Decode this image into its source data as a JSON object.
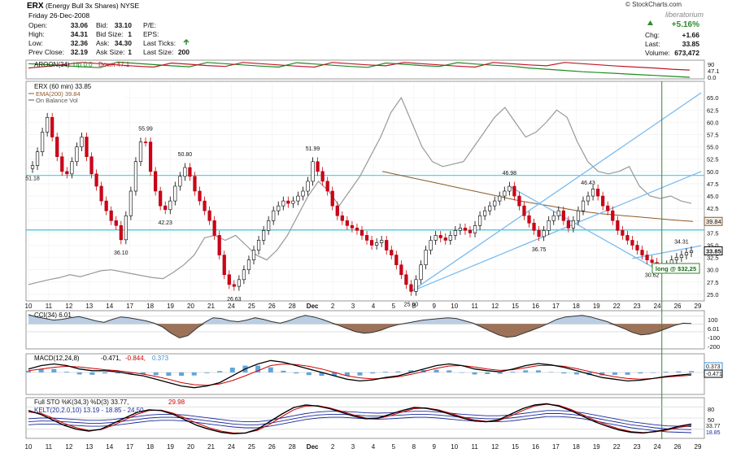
{
  "header": {
    "ticker": "ERX",
    "name": "(Energy Bull 3x Shares)",
    "exchange": "NYSE",
    "date": "Friday  26-Dec-2008",
    "watermark": "© StockCharts.com",
    "brand": "liberatorium",
    "left_stats": [
      {
        "label": "Open:",
        "value": "33.06"
      },
      {
        "label": "High:",
        "value": "34.31"
      },
      {
        "label": "Low:",
        "value": "32.36"
      },
      {
        "label": "Prev Close:",
        "value": "32.19"
      }
    ],
    "mid_stats": [
      {
        "label": "Bid:",
        "value": "33.10"
      },
      {
        "label": "Bid Size:",
        "value": "1"
      },
      {
        "label": "Ask:",
        "value": "34.30"
      },
      {
        "label": "Ask Size:",
        "value": "1"
      }
    ],
    "right_stats": [
      {
        "label": "P/E:",
        "value": ""
      },
      {
        "label": "EPS:",
        "value": ""
      },
      {
        "label": "Last Ticks:",
        "value": ""
      },
      {
        "label": "Last Size:",
        "value": "200"
      }
    ],
    "change_pct": "+5.16%",
    "quote": [
      {
        "label": "Chg:",
        "value": "+1.66"
      },
      {
        "label": "Last:",
        "value": "33.85"
      },
      {
        "label": "Volume:",
        "value": "673,472"
      }
    ],
    "colors": {
      "up": "#2e8b2e",
      "down": "#cc0000"
    }
  },
  "chart_data": [
    {
      "type": "line",
      "panel": "aroon",
      "title": "AROON(34) Up 0.0  Down 47.1",
      "legend": [
        "AROON(34)",
        "Up 0.0",
        "Down 47.1"
      ],
      "ylim": [
        0,
        100
      ],
      "yticks": [
        "90",
        "47.1",
        "0.0"
      ],
      "series": [
        {
          "name": "Up",
          "color": "#1f8a1f",
          "values": [
            88,
            82,
            75,
            68,
            62,
            98,
            90,
            82,
            74,
            68,
            96,
            88,
            80,
            72,
            66,
            94,
            86,
            78,
            70,
            64,
            92,
            84,
            76,
            70,
            95,
            86,
            78,
            72,
            60,
            52,
            44,
            36,
            30,
            24,
            18,
            12,
            6,
            0
          ]
        },
        {
          "name": "Down",
          "color": "#c0182a",
          "values": [
            60,
            70,
            82,
            96,
            88,
            80,
            72,
            66,
            92,
            84,
            76,
            70,
            96,
            88,
            80,
            72,
            66,
            96,
            88,
            80,
            74,
            96,
            88,
            80,
            72,
            66,
            96,
            88,
            80,
            74,
            96,
            88,
            80,
            72,
            66,
            60,
            52,
            47
          ]
        }
      ]
    },
    {
      "type": "candlestick",
      "panel": "price",
      "title": "ERX (60 min) 33.85",
      "legend": [
        {
          "name": "EMA(200) 39.84",
          "color": "#8b5a2b"
        },
        {
          "name": "On Balance Vol",
          "color": "#555555"
        }
      ],
      "ylim": [
        24,
        68
      ],
      "yticks": [
        25,
        27.5,
        30,
        32.5,
        35,
        37.5,
        40,
        42.5,
        45,
        47.5,
        50,
        52.5,
        55,
        57.5,
        60,
        62.5,
        65
      ],
      "x_labels": [
        "10",
        "11",
        "12",
        "13",
        "14",
        "17",
        "18",
        "19",
        "20",
        "21",
        "24",
        "25",
        "26",
        "28",
        "Dec",
        "2",
        "3",
        "4",
        "5",
        "8",
        "9",
        "10",
        "11",
        "12",
        "15",
        "16",
        "17",
        "18",
        "19",
        "22",
        "23",
        "24",
        "26",
        "29"
      ],
      "closes": [
        51.2,
        54,
        58,
        61,
        57,
        53,
        50,
        49.5,
        52,
        55,
        57,
        53,
        49.5,
        47,
        44,
        42,
        40,
        39,
        36.1,
        41,
        46,
        52,
        56,
        55.99,
        50,
        46,
        43,
        42.23,
        44,
        47,
        49,
        50.8,
        49,
        46,
        44,
        42,
        40,
        37,
        33,
        29,
        27,
        26.63,
        28,
        30,
        32,
        34,
        36,
        38,
        40,
        42,
        43,
        44,
        43.5,
        44,
        45,
        46,
        48,
        51.99,
        50,
        48,
        46,
        43,
        41,
        40,
        39,
        38.5,
        38,
        37,
        36,
        35,
        35.5,
        36,
        34,
        33,
        31,
        29,
        27,
        25.6,
        28,
        31,
        34,
        36,
        37,
        36.5,
        36,
        37,
        38,
        38.5,
        38,
        37.5,
        39,
        41,
        42,
        43,
        44,
        45,
        46,
        46.98,
        45,
        43,
        41,
        39.5,
        38,
        36.75,
        38,
        40,
        41,
        42,
        40,
        38.5,
        40,
        42,
        44,
        45,
        46.43,
        45,
        43,
        42,
        40,
        38,
        37,
        36,
        35,
        34,
        33,
        32,
        31.5,
        31,
        30.62,
        31,
        32,
        32.5,
        33,
        33.5,
        33.85
      ],
      "labels": [
        {
          "text": "51.18",
          "idx": 0
        },
        {
          "text": "36.10",
          "idx": 18
        },
        {
          "text": "55.99",
          "idx": 23
        },
        {
          "text": "42.23",
          "idx": 27
        },
        {
          "text": "50.80",
          "idx": 31
        },
        {
          "text": "26.63",
          "idx": 41
        },
        {
          "text": "51.99",
          "idx": 57
        },
        {
          "text": "25.60",
          "idx": 77
        },
        {
          "text": "46.98",
          "idx": 97
        },
        {
          "text": "36.75",
          "idx": 103
        },
        {
          "text": "46.43",
          "idx": 113
        },
        {
          "text": "30.62",
          "idx": 126
        },
        {
          "text": "34.31",
          "idx": 132
        }
      ],
      "last_value": "33.85",
      "ema_value": "39.84",
      "ema": [
        50,
        49.5,
        49,
        48.5,
        48,
        47.5,
        47,
        46.5,
        46,
        45.5,
        45,
        44.5,
        44,
        43.6,
        43.2,
        42.8,
        42.4,
        42,
        41.7,
        41.4,
        41.2,
        41,
        40.8,
        40.6,
        40.4,
        40.2,
        40,
        39.84
      ],
      "obv": [
        27,
        27.5,
        28,
        28.4,
        29,
        28.6,
        29.2,
        29.8,
        30,
        29.6,
        29.2,
        28.8,
        28.4,
        28.2,
        29.5,
        31,
        33,
        36.5,
        37,
        36,
        37,
        35,
        33,
        32,
        34,
        37,
        41,
        45,
        48,
        46,
        43,
        46,
        49,
        53,
        57,
        62,
        65,
        60,
        55,
        52,
        51,
        51.5,
        52,
        55,
        58,
        61,
        63,
        60,
        57,
        58,
        60,
        62.5,
        61,
        56,
        52,
        50,
        49.5,
        50,
        51,
        47,
        45,
        44.5,
        45,
        44,
        43.5
      ],
      "lines": [
        {
          "from": [
            77,
            25.6
          ],
          "to": [
            136,
            66
          ],
          "color": "#7bbcf0"
        },
        {
          "from": [
            77,
            25.6
          ],
          "to": [
            136,
            50
          ],
          "color": "#7bbcf0"
        },
        {
          "from": [
            97,
            46.98
          ],
          "to": [
            126,
            30.62
          ],
          "color": "#7bbcf0"
        },
        {
          "from": [
            122,
            32.3
          ],
          "to": [
            136,
            34.9
          ],
          "color": "#7bbcf0"
        }
      ],
      "hlines": [
        {
          "value": 49.2,
          "color": "#58d4e6"
        },
        {
          "value": 38.1,
          "color": "#3cc4d8"
        }
      ],
      "annotation": "long @ $32,25",
      "vline_idx": 128
    },
    {
      "type": "area",
      "panel": "cci",
      "title": "CCI(34) 6.01",
      "ylim": [
        -300,
        150
      ],
      "yticks": [
        "100",
        "6.01",
        "-100",
        "-200"
      ],
      "values": [
        120,
        90,
        70,
        50,
        60,
        80,
        95,
        70,
        40,
        20,
        60,
        90,
        80,
        60,
        40,
        10,
        -40,
        -120,
        -180,
        -150,
        -60,
        20,
        80,
        70,
        40,
        30,
        50,
        80,
        60,
        30,
        10,
        40,
        80,
        110,
        90,
        60,
        20,
        -20,
        -60,
        -100,
        -120,
        -110,
        -80,
        -40,
        -10,
        10,
        30,
        50,
        60,
        70,
        80,
        70,
        40,
        10,
        -40,
        -90,
        -140,
        -170,
        -160,
        -120,
        -80,
        -40,
        10,
        60,
        90,
        100,
        110,
        90,
        60,
        30,
        -20,
        -60,
        -110,
        -140,
        -130,
        -100,
        -60,
        -20,
        10,
        6
      ]
    },
    {
      "type": "bar",
      "panel": "macd",
      "title": "MACD(12,24,8) -0.471, -0.844, 0.373",
      "legend": [
        {
          "name": "MACD(12,24,8)",
          "color": "#000000"
        },
        {
          "name": "-0.471",
          "color": "#000000"
        },
        {
          "name": "-0.844",
          "color": "#cc0000"
        },
        {
          "name": "0.373",
          "color": "#3a8fd4"
        }
      ],
      "ylim": [
        -6,
        5
      ],
      "yticks": [
        "0.373",
        "-0.471"
      ],
      "macd": [
        1,
        2,
        2.5,
        2,
        1,
        0.5,
        0.5,
        0.2,
        -0.5,
        -1,
        -2,
        -3,
        -4,
        -4.5,
        -4,
        -3,
        -1,
        1,
        2.5,
        3.5,
        3,
        2,
        1,
        0,
        -1,
        -2,
        -2.5,
        -2.2,
        -1.5,
        -1,
        0,
        1,
        2,
        2.5,
        2,
        1,
        0.5,
        0.2,
        1,
        2,
        2.6,
        2.2,
        1.5,
        0.5,
        -0.5,
        -1.5,
        -2,
        -2.5,
        -2.3,
        -1.8,
        -1.2,
        -0.8,
        -0.47
      ],
      "signal": [
        0.5,
        1,
        1.5,
        1.8,
        1.6,
        1.2,
        0.8,
        0.5,
        0,
        -0.5,
        -1.2,
        -2,
        -3,
        -3.6,
        -3.8,
        -3.4,
        -2.4,
        -1,
        0.5,
        2,
        2.5,
        2.3,
        1.8,
        1,
        0,
        -1,
        -1.6,
        -1.9,
        -1.7,
        -1.3,
        -0.6,
        0.3,
        1.2,
        1.9,
        2,
        1.6,
        1,
        0.6,
        0.8,
        1.4,
        2,
        2.1,
        1.8,
        1.1,
        0.3,
        -0.6,
        -1.3,
        -1.8,
        -2,
        -1.8,
        -1.4,
        -1.1,
        -0.84
      ]
    },
    {
      "type": "line",
      "panel": "sto",
      "title": "Full STO %K(34,3) %D(3) 33.77, 29.98",
      "subtitle": "KELT(20,2.0,10) 13.19 - 18.85 - 24.50",
      "legend": [
        {
          "name": "Full STO %K(34,3) %D(3) 33.77",
          "color": "#000000"
        },
        {
          "name": "29.98",
          "color": "#cc0000"
        },
        {
          "name": "KELT(20,2.0,10) 13.19 - 18.85 - 24.50",
          "color": "#1a2a9a"
        }
      ],
      "ylim": [
        0,
        100
      ],
      "yticks": [
        "80",
        "50",
        "33.77",
        "18.85"
      ],
      "k": [
        70,
        60,
        45,
        30,
        20,
        15,
        20,
        35,
        50,
        65,
        72,
        70,
        60,
        45,
        30,
        20,
        12,
        8,
        10,
        20,
        40,
        60,
        78,
        85,
        82,
        75,
        65,
        55,
        48,
        50,
        60,
        70,
        78,
        76,
        70,
        60,
        50,
        42,
        40,
        45,
        60,
        75,
        85,
        88,
        82,
        70,
        55,
        40,
        28,
        18,
        12,
        10,
        14,
        20,
        28,
        33.77
      ],
      "d": [
        66,
        63,
        50,
        35,
        24,
        17,
        19,
        30,
        45,
        60,
        70,
        71,
        63,
        50,
        36,
        24,
        15,
        10,
        10,
        17,
        33,
        53,
        72,
        82,
        83,
        77,
        68,
        58,
        50,
        49,
        56,
        66,
        75,
        77,
        72,
        63,
        53,
        45,
        41,
        43,
        55,
        70,
        82,
        87,
        84,
        73,
        59,
        44,
        32,
        21,
        14,
        11,
        13,
        18,
        25,
        29.98
      ],
      "kelt_mid": [
        40,
        42,
        42,
        40,
        38,
        36,
        36,
        38,
        42,
        46,
        50,
        52,
        52,
        50,
        46,
        42,
        38,
        34,
        32,
        32,
        36,
        42,
        48,
        54,
        58,
        60,
        60,
        58,
        56,
        55,
        56,
        58,
        60,
        60,
        58,
        55,
        52,
        50,
        48,
        48,
        50,
        54,
        58,
        62,
        62,
        60,
        56,
        50,
        44,
        38,
        32,
        28,
        24,
        21,
        20,
        18.85
      ]
    }
  ]
}
